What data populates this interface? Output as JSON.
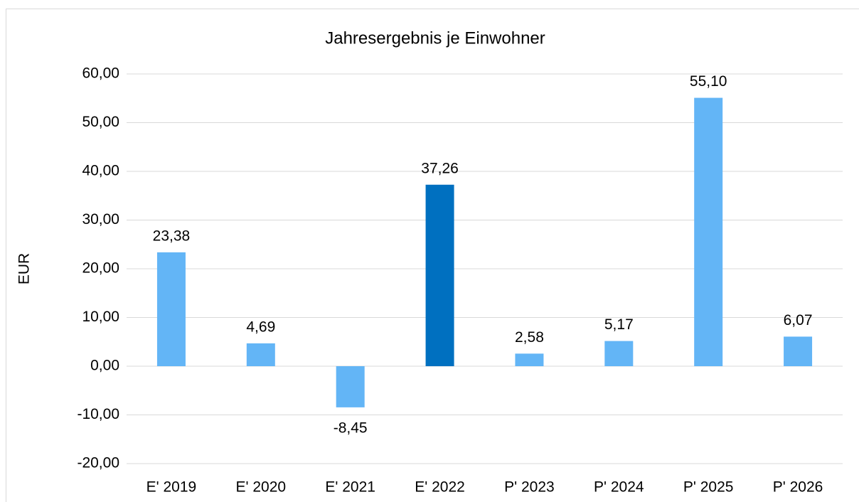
{
  "chart_data": {
    "type": "bar",
    "title": "Jahresergebnis je Einwohner",
    "y_label": "EUR",
    "categories": [
      "E' 2019",
      "E' 2020",
      "E' 2021",
      "E' 2022",
      "P' 2023",
      "P' 2024",
      "P' 2025",
      "P' 2026"
    ],
    "values": [
      23.38,
      4.69,
      -8.45,
      37.26,
      2.58,
      5.17,
      55.1,
      6.07
    ],
    "value_labels": [
      "23,38",
      "4,69",
      "-8,45",
      "37,26",
      "2,58",
      "5,17",
      "55,10",
      "6,07"
    ],
    "colors": [
      "#63b5f6",
      "#63b5f6",
      "#63b5f6",
      "#0070c0",
      "#63b5f6",
      "#63b5f6",
      "#63b5f6",
      "#63b5f6"
    ],
    "ylim": [
      -20,
      60
    ],
    "yticks": [
      {
        "value": -20,
        "label": "-20,00"
      },
      {
        "value": -10,
        "label": "-10,00"
      },
      {
        "value": 0,
        "label": "0,00"
      },
      {
        "value": 10,
        "label": "10,00"
      },
      {
        "value": 20,
        "label": "20,00"
      },
      {
        "value": 30,
        "label": "30,00"
      },
      {
        "value": 40,
        "label": "40,00"
      },
      {
        "value": 50,
        "label": "50,00"
      },
      {
        "value": 60,
        "label": "60,00"
      }
    ],
    "grid": true
  }
}
